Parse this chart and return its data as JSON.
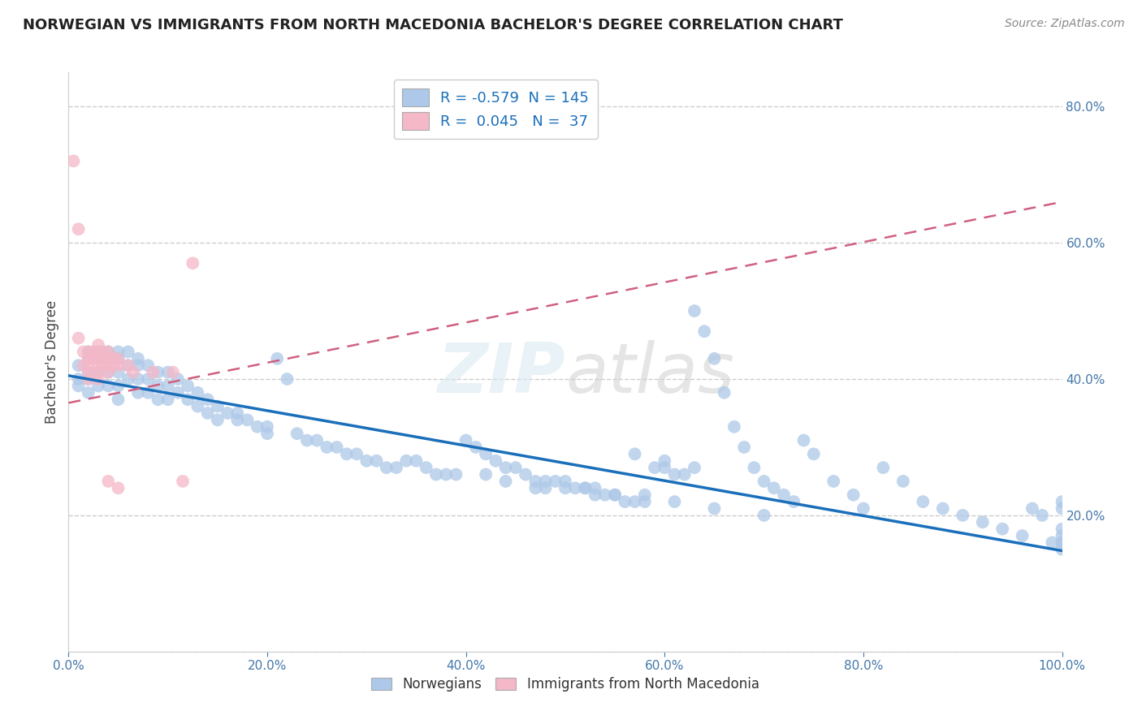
{
  "title": "NORWEGIAN VS IMMIGRANTS FROM NORTH MACEDONIA BACHELOR'S DEGREE CORRELATION CHART",
  "source": "Source: ZipAtlas.com",
  "ylabel": "Bachelor's Degree",
  "xlim": [
    0.0,
    1.0
  ],
  "ylim": [
    0.0,
    0.85
  ],
  "x_ticks": [
    0.0,
    0.2,
    0.4,
    0.6,
    0.8,
    1.0
  ],
  "x_tick_labels": [
    "0.0%",
    "20.0%",
    "40.0%",
    "60.0%",
    "80.0%",
    "100.0%"
  ],
  "y_ticks": [
    0.0,
    0.2,
    0.4,
    0.6,
    0.8
  ],
  "y_tick_labels": [
    "",
    "20.0%",
    "40.0%",
    "60.0%",
    "80.0%"
  ],
  "norwegian_R": -0.579,
  "norwegian_N": 145,
  "immigrant_R": 0.045,
  "immigrant_N": 37,
  "norwegian_color": "#adc8e8",
  "norwegian_line_color": "#1a6fba",
  "immigrant_color": "#f4b8c8",
  "immigrant_line_color": "#d06080",
  "norwegian_trend_y0": 0.405,
  "norwegian_trend_y1": 0.148,
  "immigrant_trend_y0": 0.365,
  "immigrant_trend_y1": 0.66,
  "norwegian_x": [
    0.01,
    0.01,
    0.01,
    0.02,
    0.02,
    0.02,
    0.02,
    0.02,
    0.03,
    0.03,
    0.03,
    0.03,
    0.04,
    0.04,
    0.04,
    0.04,
    0.05,
    0.05,
    0.05,
    0.05,
    0.05,
    0.06,
    0.06,
    0.06,
    0.07,
    0.07,
    0.07,
    0.07,
    0.08,
    0.08,
    0.08,
    0.09,
    0.09,
    0.09,
    0.1,
    0.1,
    0.1,
    0.11,
    0.11,
    0.12,
    0.12,
    0.13,
    0.13,
    0.14,
    0.14,
    0.15,
    0.15,
    0.16,
    0.17,
    0.17,
    0.18,
    0.19,
    0.2,
    0.2,
    0.21,
    0.22,
    0.23,
    0.24,
    0.25,
    0.26,
    0.27,
    0.28,
    0.29,
    0.3,
    0.31,
    0.32,
    0.33,
    0.34,
    0.35,
    0.36,
    0.37,
    0.38,
    0.39,
    0.4,
    0.41,
    0.42,
    0.43,
    0.44,
    0.45,
    0.46,
    0.47,
    0.48,
    0.49,
    0.5,
    0.51,
    0.52,
    0.53,
    0.54,
    0.55,
    0.56,
    0.57,
    0.58,
    0.59,
    0.6,
    0.61,
    0.62,
    0.63,
    0.64,
    0.65,
    0.66,
    0.67,
    0.68,
    0.69,
    0.7,
    0.71,
    0.72,
    0.73,
    0.74,
    0.75,
    0.77,
    0.79,
    0.8,
    0.82,
    0.84,
    0.86,
    0.88,
    0.9,
    0.92,
    0.94,
    0.96,
    0.97,
    0.98,
    0.99,
    1.0,
    1.0,
    1.0,
    1.0,
    1.0,
    1.0,
    1.0,
    0.5,
    0.52,
    0.48,
    0.55,
    0.57,
    0.6,
    0.63,
    0.42,
    0.44,
    0.47,
    0.53,
    0.58,
    0.61,
    0.65,
    0.7
  ],
  "norwegian_y": [
    0.42,
    0.4,
    0.39,
    0.44,
    0.43,
    0.41,
    0.4,
    0.38,
    0.44,
    0.43,
    0.41,
    0.39,
    0.44,
    0.43,
    0.41,
    0.39,
    0.44,
    0.43,
    0.41,
    0.39,
    0.37,
    0.44,
    0.42,
    0.4,
    0.43,
    0.42,
    0.4,
    0.38,
    0.42,
    0.4,
    0.38,
    0.41,
    0.39,
    0.37,
    0.41,
    0.39,
    0.37,
    0.4,
    0.38,
    0.39,
    0.37,
    0.38,
    0.36,
    0.37,
    0.35,
    0.36,
    0.34,
    0.35,
    0.35,
    0.34,
    0.34,
    0.33,
    0.33,
    0.32,
    0.43,
    0.4,
    0.32,
    0.31,
    0.31,
    0.3,
    0.3,
    0.29,
    0.29,
    0.28,
    0.28,
    0.27,
    0.27,
    0.28,
    0.28,
    0.27,
    0.26,
    0.26,
    0.26,
    0.31,
    0.3,
    0.29,
    0.28,
    0.27,
    0.27,
    0.26,
    0.25,
    0.25,
    0.25,
    0.24,
    0.24,
    0.24,
    0.23,
    0.23,
    0.23,
    0.22,
    0.22,
    0.22,
    0.27,
    0.27,
    0.26,
    0.26,
    0.5,
    0.47,
    0.43,
    0.38,
    0.33,
    0.3,
    0.27,
    0.25,
    0.24,
    0.23,
    0.22,
    0.31,
    0.29,
    0.25,
    0.23,
    0.21,
    0.27,
    0.25,
    0.22,
    0.21,
    0.2,
    0.19,
    0.18,
    0.17,
    0.21,
    0.2,
    0.16,
    0.18,
    0.17,
    0.16,
    0.15,
    0.16,
    0.22,
    0.21,
    0.25,
    0.24,
    0.24,
    0.23,
    0.29,
    0.28,
    0.27,
    0.26,
    0.25,
    0.24,
    0.24,
    0.23,
    0.22,
    0.21,
    0.2
  ],
  "immigrant_x": [
    0.005,
    0.01,
    0.01,
    0.015,
    0.015,
    0.02,
    0.02,
    0.02,
    0.02,
    0.02,
    0.025,
    0.025,
    0.03,
    0.03,
    0.03,
    0.03,
    0.03,
    0.03,
    0.035,
    0.035,
    0.035,
    0.04,
    0.04,
    0.04,
    0.04,
    0.04,
    0.045,
    0.045,
    0.05,
    0.05,
    0.05,
    0.06,
    0.065,
    0.085,
    0.105,
    0.115,
    0.125
  ],
  "immigrant_y": [
    0.72,
    0.62,
    0.46,
    0.44,
    0.42,
    0.44,
    0.43,
    0.42,
    0.41,
    0.4,
    0.44,
    0.43,
    0.45,
    0.44,
    0.43,
    0.42,
    0.41,
    0.4,
    0.44,
    0.43,
    0.42,
    0.44,
    0.43,
    0.42,
    0.41,
    0.25,
    0.43,
    0.42,
    0.43,
    0.42,
    0.24,
    0.42,
    0.41,
    0.41,
    0.41,
    0.25,
    0.57
  ]
}
